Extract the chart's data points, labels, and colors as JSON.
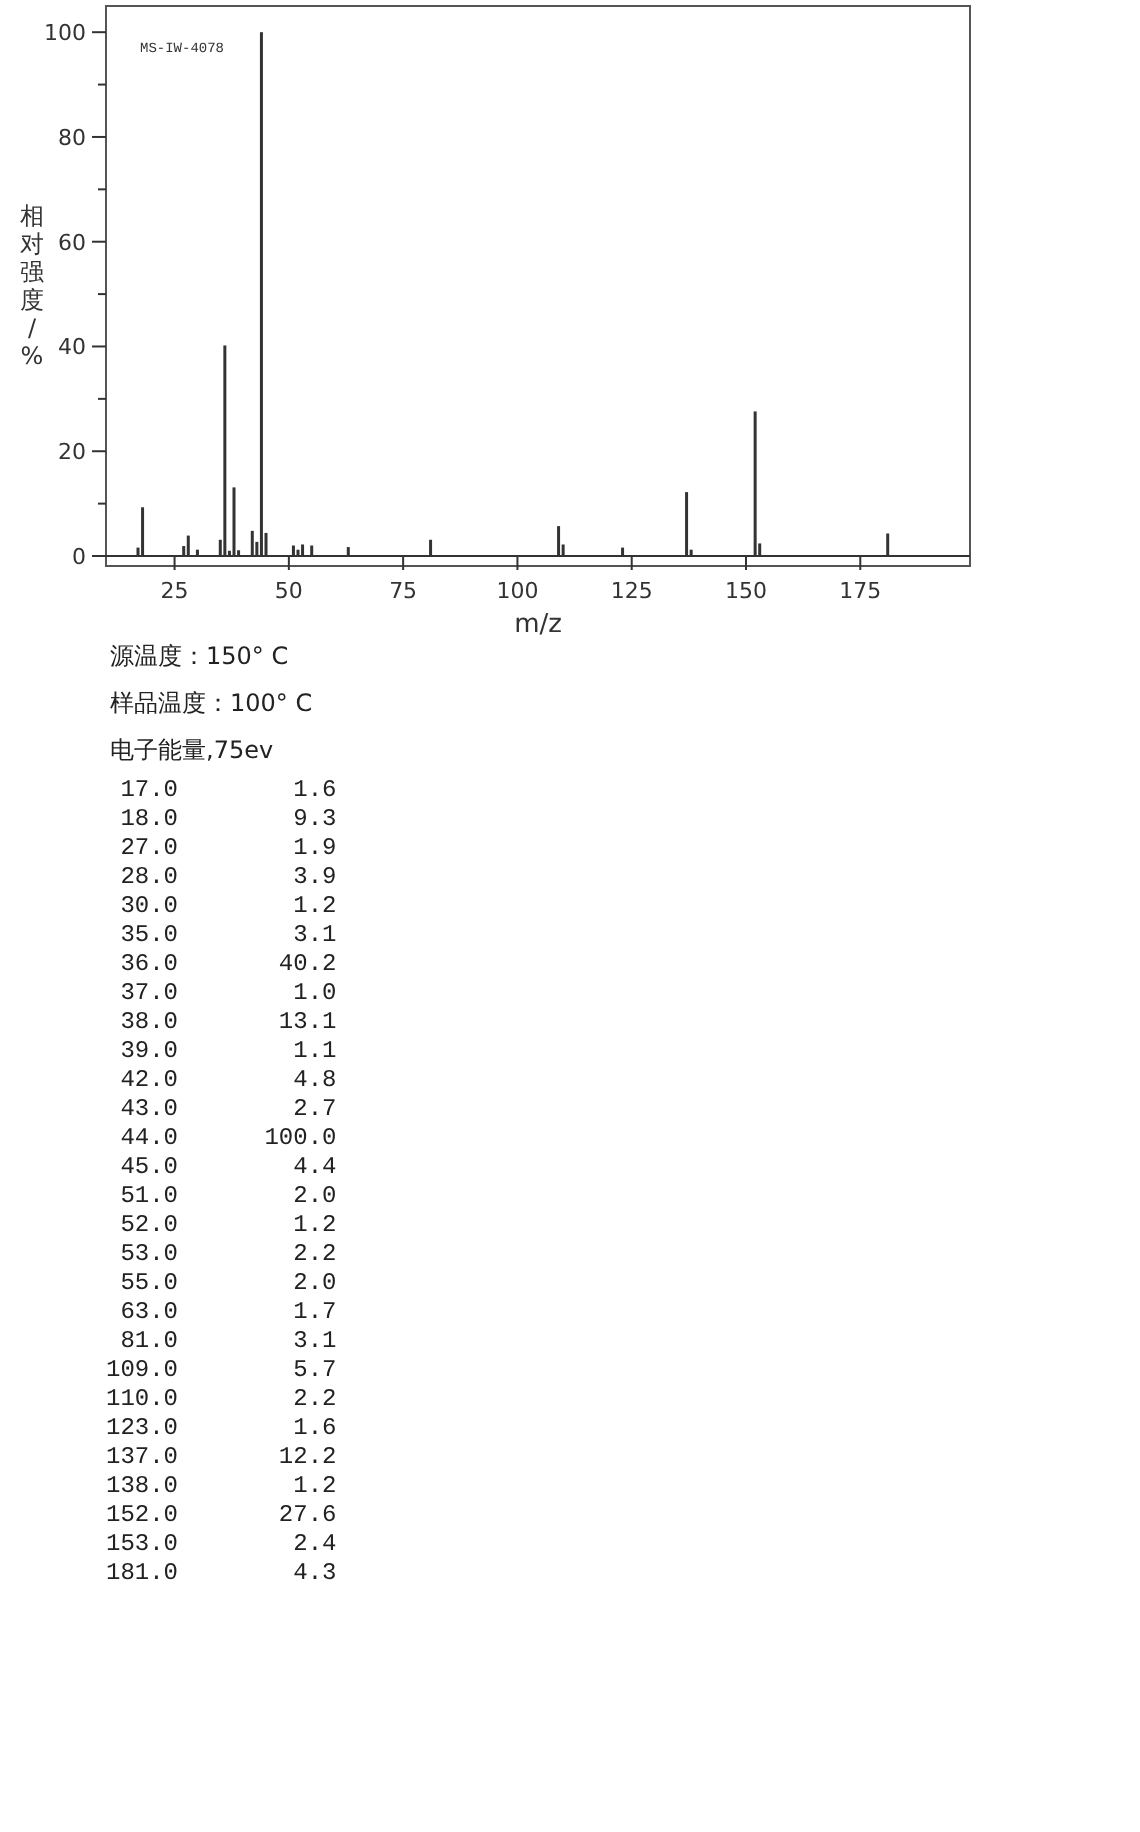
{
  "chart_data": {
    "type": "bar",
    "xlabel": "m/z",
    "ylabel": "相对强度/%",
    "x": [
      17,
      18,
      27,
      28,
      30,
      35,
      36,
      37,
      38,
      39,
      42,
      43,
      44,
      45,
      51,
      52,
      53,
      55,
      63,
      81,
      109,
      110,
      123,
      137,
      138,
      152,
      153,
      181
    ],
    "values": [
      1.6,
      9.3,
      1.9,
      3.9,
      1.2,
      3.1,
      40.2,
      1.0,
      13.1,
      1.1,
      4.8,
      2.7,
      100,
      4.4,
      2.0,
      1.2,
      2.2,
      2.0,
      1.7,
      3.1,
      5.7,
      2.2,
      1.6,
      12.2,
      1.2,
      27.6,
      2.4,
      4.3
    ],
    "color": "#333333",
    "xlim": [
      10,
      199
    ],
    "xticks": [
      25,
      50,
      75,
      100,
      125,
      150,
      175
    ],
    "ylim": [
      0,
      105
    ],
    "yticks": [
      0,
      {
        "value": 10,
        "label": null
      },
      20,
      {
        "value": 30,
        "label": null
      },
      40,
      {
        "value": 50,
        "label": null
      },
      60,
      {
        "value": 70,
        "label": null
      },
      80,
      {
        "value": 90,
        "label": null
      },
      100
    ],
    "annotations": [
      "MS-IW-4078",
      "源温度：150° C",
      "样品温度：100° C",
      "电子能量,75ev",
      " 17.0        1.6",
      " 18.0        9.3",
      " 27.0        1.9",
      " 28.0        3.9",
      " 30.0        1.2",
      " 35.0        3.1",
      " 36.0       40.2",
      " 37.0        1.0",
      " 38.0       13.1",
      " 39.0        1.1",
      " 42.0        4.8",
      " 43.0        2.7",
      " 44.0      100.0",
      " 45.0        4.4",
      " 51.0        2.0",
      " 52.0        1.2",
      " 53.0        2.2",
      " 55.0        2.0",
      " 63.0        1.7",
      " 81.0        3.1",
      "109.0        5.7",
      "110.0        2.2",
      "123.0        1.6",
      "137.0       12.2",
      "138.0        1.2",
      "152.0       27.6",
      "153.0        2.4",
      "181.0        4.3"
    ]
  }
}
